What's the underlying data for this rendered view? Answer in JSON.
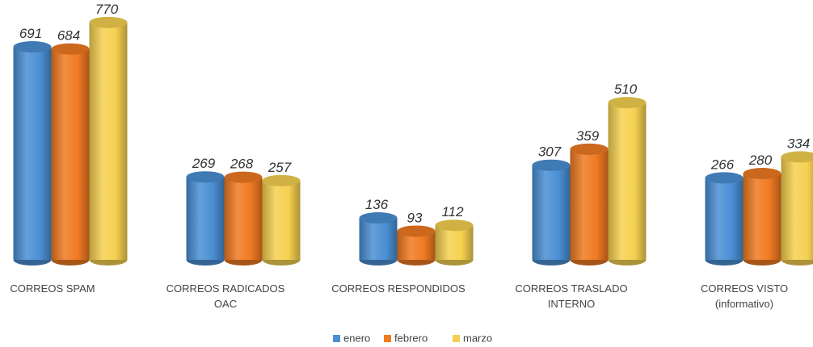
{
  "chart_data": {
    "type": "bar",
    "categories": [
      "CORREOS SPAM",
      "CORREOS RADICADOS\nOAC",
      "CORREOS RESPONDIDOS",
      "CORREOS TRASLADO\nINTERNO",
      "CORREOS VISTO\n(informativo)"
    ],
    "series": [
      {
        "name": "enero",
        "color": "#4a8fd4",
        "values": [
          691,
          269,
          136,
          307,
          266
        ]
      },
      {
        "name": "febrero",
        "color": "#f07a22",
        "values": [
          684,
          268,
          93,
          359,
          280
        ]
      },
      {
        "name": "marzo",
        "color": "#f5d050",
        "values": [
          770,
          257,
          112,
          510,
          334
        ]
      }
    ]
  }
}
